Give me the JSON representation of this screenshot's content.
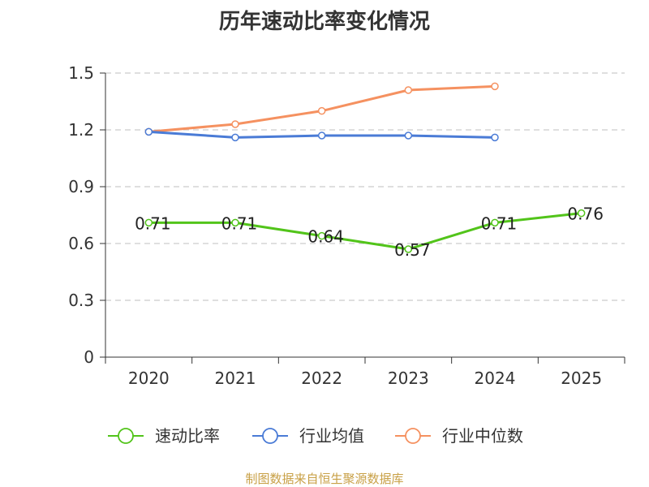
{
  "chart_data": {
    "type": "line",
    "title": "历年速动比率变化情况",
    "xlabel": "",
    "ylabel": "",
    "categories": [
      "2020",
      "2021",
      "2022",
      "2023",
      "2024",
      "2025"
    ],
    "ylim": [
      0,
      1.5
    ],
    "yticks": [
      "0",
      "0.3",
      "0.6",
      "0.9",
      "1.2",
      "1.5"
    ],
    "grid": true,
    "legend_position": "bottom",
    "series": [
      {
        "name": "速动比率",
        "color": "#52c41a",
        "values": [
          0.71,
          0.71,
          0.64,
          0.57,
          0.71,
          0.76
        ],
        "labels": [
          "0.71",
          "0.71",
          "0.64",
          "0.57",
          "0.71",
          "0.76"
        ]
      },
      {
        "name": "行业均值",
        "color": "#4a7bd6",
        "values": [
          1.19,
          1.16,
          1.17,
          1.17,
          1.16,
          null
        ]
      },
      {
        "name": "行业中位数",
        "color": "#f59160",
        "values": [
          1.19,
          1.23,
          1.3,
          1.41,
          1.43,
          null
        ]
      }
    ]
  },
  "source": "制图数据来自恒生聚源数据库"
}
